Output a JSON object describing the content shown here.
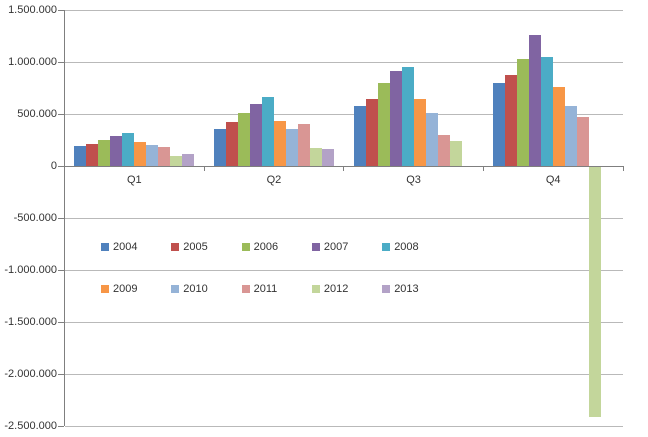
{
  "chart_data": {
    "type": "bar",
    "title": "",
    "xlabel": "",
    "ylabel": "",
    "grid": true,
    "legend_position": "inside-center-left, two rows",
    "categories": [
      "Q1",
      "Q2",
      "Q3",
      "Q4"
    ],
    "series": [
      {
        "name": "2004",
        "color": "#4F81BD",
        "values": [
          190000,
          355000,
          575000,
          800000
        ]
      },
      {
        "name": "2005",
        "color": "#C0504D",
        "values": [
          215000,
          420000,
          640000,
          875000
        ]
      },
      {
        "name": "2006",
        "color": "#9BBB59",
        "values": [
          250000,
          510000,
          800000,
          1025000
        ]
      },
      {
        "name": "2007",
        "color": "#8064A2",
        "values": [
          290000,
          600000,
          915000,
          1260000
        ]
      },
      {
        "name": "2008",
        "color": "#4BACC6",
        "values": [
          320000,
          660000,
          950000,
          1050000
        ]
      },
      {
        "name": "2009",
        "color": "#F79646",
        "values": [
          230000,
          430000,
          645000,
          760000
        ]
      },
      {
        "name": "2010",
        "color": "#95B3D7",
        "values": [
          205000,
          355000,
          510000,
          580000
        ]
      },
      {
        "name": "2011",
        "color": "#D99694",
        "values": [
          185000,
          400000,
          300000,
          470000
        ]
      },
      {
        "name": "2012",
        "color": "#C3D69B",
        "values": [
          100000,
          170000,
          245000,
          -2400000
        ]
      },
      {
        "name": "2013",
        "color": "#B3A2C7",
        "values": [
          115000,
          160000,
          null,
          null
        ]
      }
    ],
    "ylim": [
      -2500000,
      1500000
    ],
    "y_ticks": [
      {
        "value": 1500000,
        "label": "1.500.000"
      },
      {
        "value": 1000000,
        "label": "1.000.000"
      },
      {
        "value": 500000,
        "label": "500.000"
      },
      {
        "value": 0,
        "label": "0"
      },
      {
        "value": -500000,
        "label": "-500.000"
      },
      {
        "value": -1000000,
        "label": "-1.000.000"
      },
      {
        "value": -1500000,
        "label": "-1.500.000"
      },
      {
        "value": -2000000,
        "label": "-2.000.000"
      },
      {
        "value": -2500000,
        "label": "-2.500.000"
      }
    ]
  },
  "colors": {
    "background": "#FFFFFF",
    "gridline": "#B9B9B9",
    "axis": "#7F7F7F",
    "text": "#333333"
  }
}
